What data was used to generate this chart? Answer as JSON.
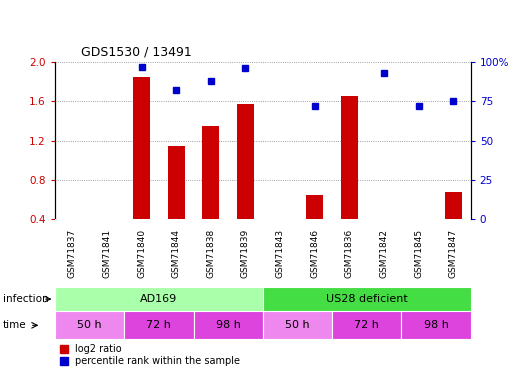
{
  "title": "GDS1530 / 13491",
  "samples": [
    "GSM71837",
    "GSM71841",
    "GSM71840",
    "GSM71844",
    "GSM71838",
    "GSM71839",
    "GSM71843",
    "GSM71846",
    "GSM71836",
    "GSM71842",
    "GSM71845",
    "GSM71847"
  ],
  "log2_ratio": [
    null,
    null,
    1.85,
    1.15,
    1.35,
    1.57,
    null,
    0.65,
    1.65,
    null,
    0.38,
    0.68
  ],
  "percentile_rank": [
    null,
    null,
    97,
    82,
    88,
    96,
    null,
    72,
    null,
    93,
    72,
    75
  ],
  "ylim_left": [
    0.4,
    2.0
  ],
  "ylim_right": [
    0,
    100
  ],
  "bar_color": "#cc0000",
  "dot_color": "#0000cc",
  "infection_labels": [
    "AD169",
    "US28 deficient"
  ],
  "infection_color_ad169": "#aaffaa",
  "infection_color_us28": "#44dd44",
  "time_labels": [
    "50 h",
    "72 h",
    "98 h",
    "50 h",
    "72 h",
    "98 h"
  ],
  "time_ranges": [
    [
      0,
      2
    ],
    [
      2,
      4
    ],
    [
      4,
      6
    ],
    [
      6,
      8
    ],
    [
      8,
      10
    ],
    [
      10,
      12
    ]
  ],
  "time_colors": [
    "#ee88ee",
    "#dd44dd",
    "#dd44dd",
    "#ee88ee",
    "#dd44dd",
    "#dd44dd"
  ],
  "legend_red": "log2 ratio",
  "legend_blue": "percentile rank within the sample",
  "grid_ticks_left": [
    0.4,
    0.8,
    1.2,
    1.6,
    2.0
  ],
  "grid_ticks_right": [
    0,
    25,
    50,
    75,
    100
  ],
  "xtick_bg_color": "#cccccc",
  "fig_bg_color": "#ffffff"
}
